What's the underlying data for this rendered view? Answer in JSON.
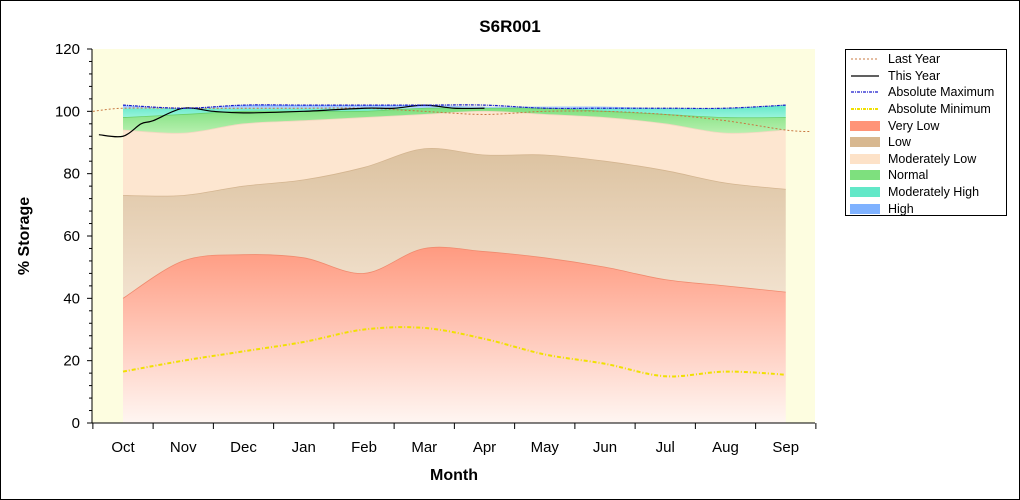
{
  "chart_data": {
    "type": "area",
    "title": "S6R001",
    "xlabel": "Month",
    "ylabel": "% Storage",
    "ylim": [
      0,
      120
    ],
    "yticks": [
      0,
      20,
      40,
      60,
      80,
      100,
      120
    ],
    "categories": [
      "Oct",
      "Nov",
      "Dec",
      "Jan",
      "Feb",
      "Mar",
      "Apr",
      "May",
      "Jun",
      "Jul",
      "Aug",
      "Sep"
    ],
    "grid": false,
    "legend_position": "right",
    "bands": [
      {
        "name": "Very Low",
        "lower": [
          0,
          0,
          0,
          0,
          0,
          0,
          0,
          0,
          0,
          0,
          0,
          0
        ],
        "upper": [
          40,
          52,
          54,
          53,
          48,
          56,
          55,
          53,
          50,
          46,
          44,
          42
        ]
      },
      {
        "name": "Low",
        "lower": [
          40,
          52,
          54,
          53,
          48,
          56,
          55,
          53,
          50,
          46,
          44,
          42
        ],
        "upper": [
          73,
          73,
          76,
          78,
          82,
          88,
          86,
          86,
          84,
          81,
          77,
          75
        ]
      },
      {
        "name": "Moderately Low",
        "lower": [
          73,
          73,
          76,
          78,
          82,
          88,
          86,
          86,
          84,
          81,
          77,
          75
        ],
        "upper": [
          94,
          93,
          96,
          97,
          98,
          99,
          100,
          99,
          98,
          96,
          93,
          94
        ]
      },
      {
        "name": "Normal",
        "lower": [
          94,
          93,
          96,
          97,
          98,
          99,
          100,
          99,
          98,
          96,
          93,
          94
        ],
        "upper": [
          98,
          99,
          100,
          100,
          100,
          101,
          101,
          101,
          100,
          99,
          98,
          98
        ]
      },
      {
        "name": "Moderately High",
        "lower": [
          98,
          99,
          100,
          100,
          100,
          101,
          101,
          101,
          100,
          99,
          98,
          98
        ],
        "upper": [
          101,
          101,
          101,
          101,
          101,
          101,
          101,
          101,
          101,
          101,
          101,
          102
        ]
      },
      {
        "name": "High",
        "lower": [
          101,
          101,
          101,
          101,
          101,
          101,
          101,
          101,
          101,
          101,
          101,
          102
        ],
        "upper": [
          102,
          101,
          102,
          102,
          102,
          102,
          101.5,
          101.5,
          101.5,
          101,
          101,
          102
        ]
      }
    ],
    "series": [
      {
        "name": "Last Year",
        "x": [
          -0.5,
          0,
          1,
          2,
          3,
          4,
          5,
          6,
          7,
          8,
          9,
          10,
          11,
          11.4
        ],
        "values": [
          100,
          101,
          101,
          101,
          101,
          101,
          100,
          99,
          100,
          100,
          99,
          97,
          94,
          93.5
        ]
      },
      {
        "name": "This Year",
        "x": [
          -0.4,
          0,
          0.3,
          0.5,
          1,
          1.5,
          2,
          3,
          4,
          4.5,
          5,
          5.5,
          6
        ],
        "values": [
          92.5,
          92,
          96,
          97,
          101,
          100,
          99.5,
          100,
          101,
          101,
          102,
          101,
          101
        ]
      },
      {
        "name": "Absolute Maximum",
        "x": [
          0,
          1,
          2,
          3,
          4,
          5,
          6,
          7,
          8,
          9,
          10,
          11
        ],
        "values": [
          102,
          101,
          102,
          102,
          102,
          102,
          102,
          101,
          101,
          101,
          101,
          102
        ]
      },
      {
        "name": "Absolute Minimum",
        "x": [
          0,
          1,
          2,
          3,
          4,
          5,
          6,
          7,
          8,
          9,
          10,
          11
        ],
        "values": [
          16.5,
          20,
          23,
          26,
          30,
          30.5,
          27,
          22,
          19,
          15,
          16.5,
          15.5
        ]
      }
    ],
    "colors": {
      "Very Low": "#ff9478",
      "Low": "#d8b890",
      "Moderately Low": "#fde2c8",
      "Normal": "#7ee07e",
      "Moderately High": "#62e8c8",
      "High": "#7fb2ff",
      "Last Year": "#c87842",
      "This Year": "#000000",
      "Absolute Maximum": "#1a1acc",
      "Absolute Minimum": "#f0e000",
      "plot_background": "#fdfde0"
    }
  }
}
